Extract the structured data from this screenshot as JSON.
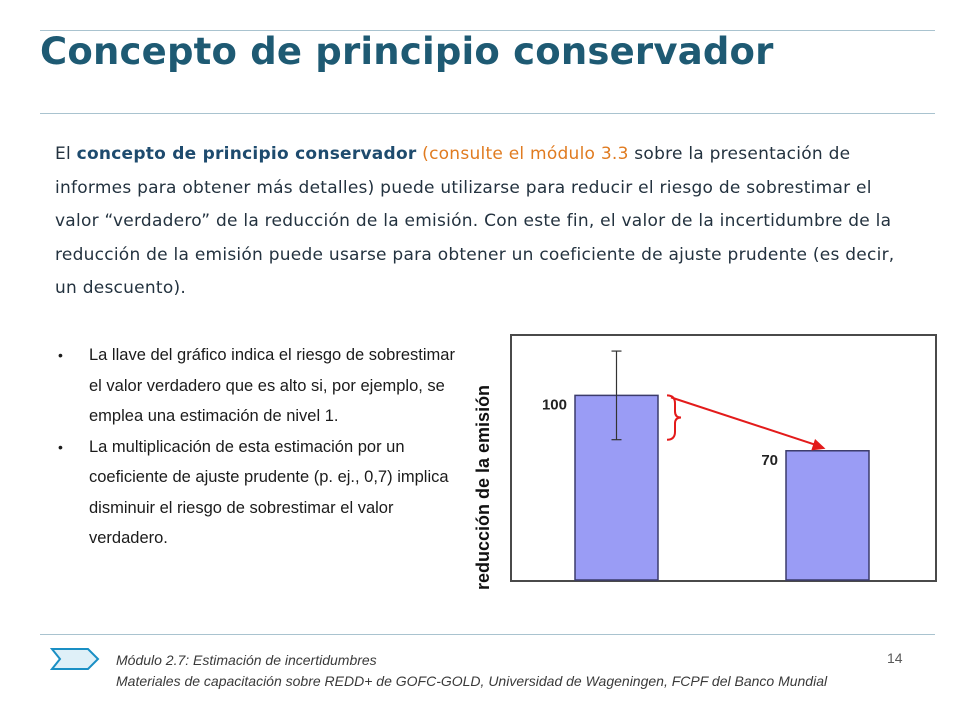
{
  "slide": {
    "title": "Concepto de principio conservador",
    "intro": {
      "prefix": "El ",
      "bold": "concepto de principio conservador",
      "paren_open": " (",
      "reference": "consulte el módulo 3.3",
      "rest": " sobre la presentación de informes para obtener más detalles) puede utilizarse para reducir el riesgo de sobrestimar el valor “verdadero” de la reducción de la emisión. Con este fin, el valor de la incertidumbre de la reducción de la emisión puede usarse para obtener un coeficiente de ajuste prudente (es decir, un descuento)."
    },
    "bullets": [
      "La llave del gráfico indica el riesgo de sobrestimar el valor verdadero que es alto si, por ejemplo, se emplea una estimación de nivel 1.",
      "La multiplicación de esta estimación por un coeficiente de ajuste prudente (p. ej., 0,7) implica disminuir el riesgo de sobrestimar el valor verdadero."
    ],
    "bullet_glyph": "•"
  },
  "chart_data": {
    "type": "bar",
    "categories": [
      "",
      ""
    ],
    "values": [
      100,
      70
    ],
    "data_labels": [
      "100",
      "70"
    ],
    "ylabel": "reducción de la emisión",
    "xlabel": "",
    "title": "",
    "ylim": [
      0,
      130
    ],
    "error_bar": {
      "bar_index": 0,
      "upper": 124,
      "lower": 76
    },
    "brace": "right of first bar, spanning upper part of the bar",
    "arrow": {
      "from": "brace",
      "to": "top of second bar",
      "color": "#e31b1b"
    },
    "bar_color": "#9a9cf5",
    "bar_edge_color": "#3b3b6b",
    "grid": false,
    "legend": "none"
  },
  "footer": {
    "line1": "Módulo 2.7: Estimación de incertidumbres",
    "line2": "Materiales de capacitación sobre REDD+ de GOFC-GOLD, Universidad de Wageningen, FCPF del Banco Mundial",
    "page_number": "14",
    "icon": "chevron-arrow-icon",
    "accent_color": "#1a8fc4"
  }
}
